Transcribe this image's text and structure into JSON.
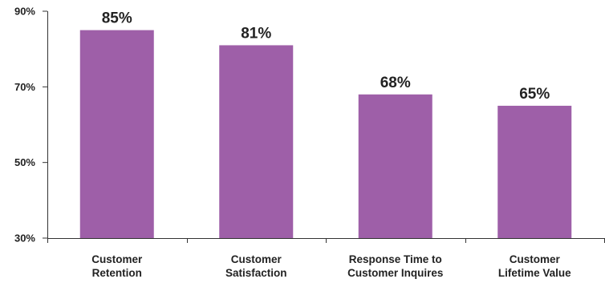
{
  "chart_data": {
    "type": "bar",
    "categories": [
      [
        "Customer",
        "Retention"
      ],
      [
        "Customer",
        "Satisfaction"
      ],
      [
        "Response Time to",
        "Customer Inquires"
      ],
      [
        "Customer",
        "Lifetime Value"
      ]
    ],
    "values": [
      85,
      81,
      68,
      65
    ],
    "data_labels": [
      "85%",
      "81%",
      "68%",
      "65%"
    ],
    "y_ticks": [
      30,
      50,
      70,
      90
    ],
    "y_tick_labels": [
      "30%",
      "50%",
      "70%",
      "90%"
    ],
    "ylim": [
      30,
      90
    ],
    "grid": false,
    "legend": "none",
    "colors": {
      "bar": "#9e5fa8",
      "axis": "#333333",
      "text": "#222222"
    }
  }
}
